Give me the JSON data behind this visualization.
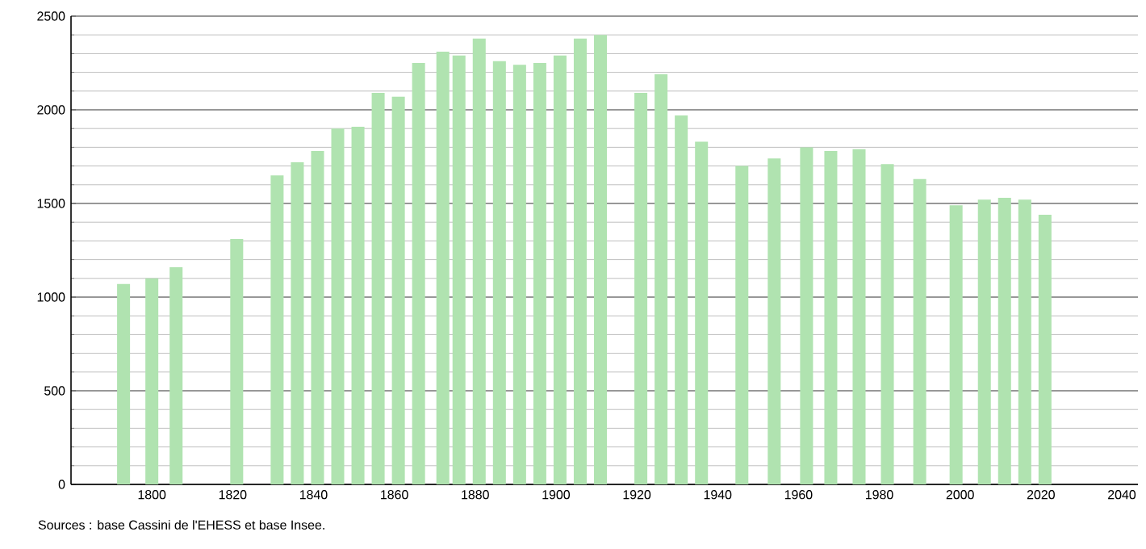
{
  "chart_data": {
    "type": "bar",
    "x": [
      1793,
      1800,
      1806,
      1821,
      1831,
      1836,
      1841,
      1846,
      1851,
      1856,
      1861,
      1866,
      1872,
      1876,
      1881,
      1886,
      1891,
      1896,
      1901,
      1906,
      1911,
      1921,
      1926,
      1931,
      1936,
      1946,
      1954,
      1962,
      1968,
      1975,
      1982,
      1990,
      1999,
      2006,
      2011,
      2016,
      2021
    ],
    "values": [
      1070,
      1100,
      1160,
      1310,
      1650,
      1720,
      1780,
      1900,
      1910,
      2090,
      2070,
      2250,
      2310,
      2290,
      2380,
      2260,
      2240,
      2250,
      2290,
      2380,
      2400,
      2090,
      2190,
      1970,
      1830,
      1700,
      1740,
      1800,
      1780,
      1790,
      1710,
      1630,
      1490,
      1520,
      1530,
      1520,
      1440
    ],
    "color": "#b0e3b0",
    "xlim": [
      1780,
      2044
    ],
    "xticks": [
      1800,
      1820,
      1840,
      1860,
      1880,
      1900,
      1920,
      1940,
      1960,
      1980,
      2000,
      2020,
      2040
    ],
    "ylim": [
      0,
      2500
    ],
    "yticks": [
      0,
      500,
      1000,
      1500,
      2000,
      2500
    ],
    "grid": "y",
    "annotations": [
      "Sources : base Cassini de l'EHESS et base Insee."
    ]
  }
}
